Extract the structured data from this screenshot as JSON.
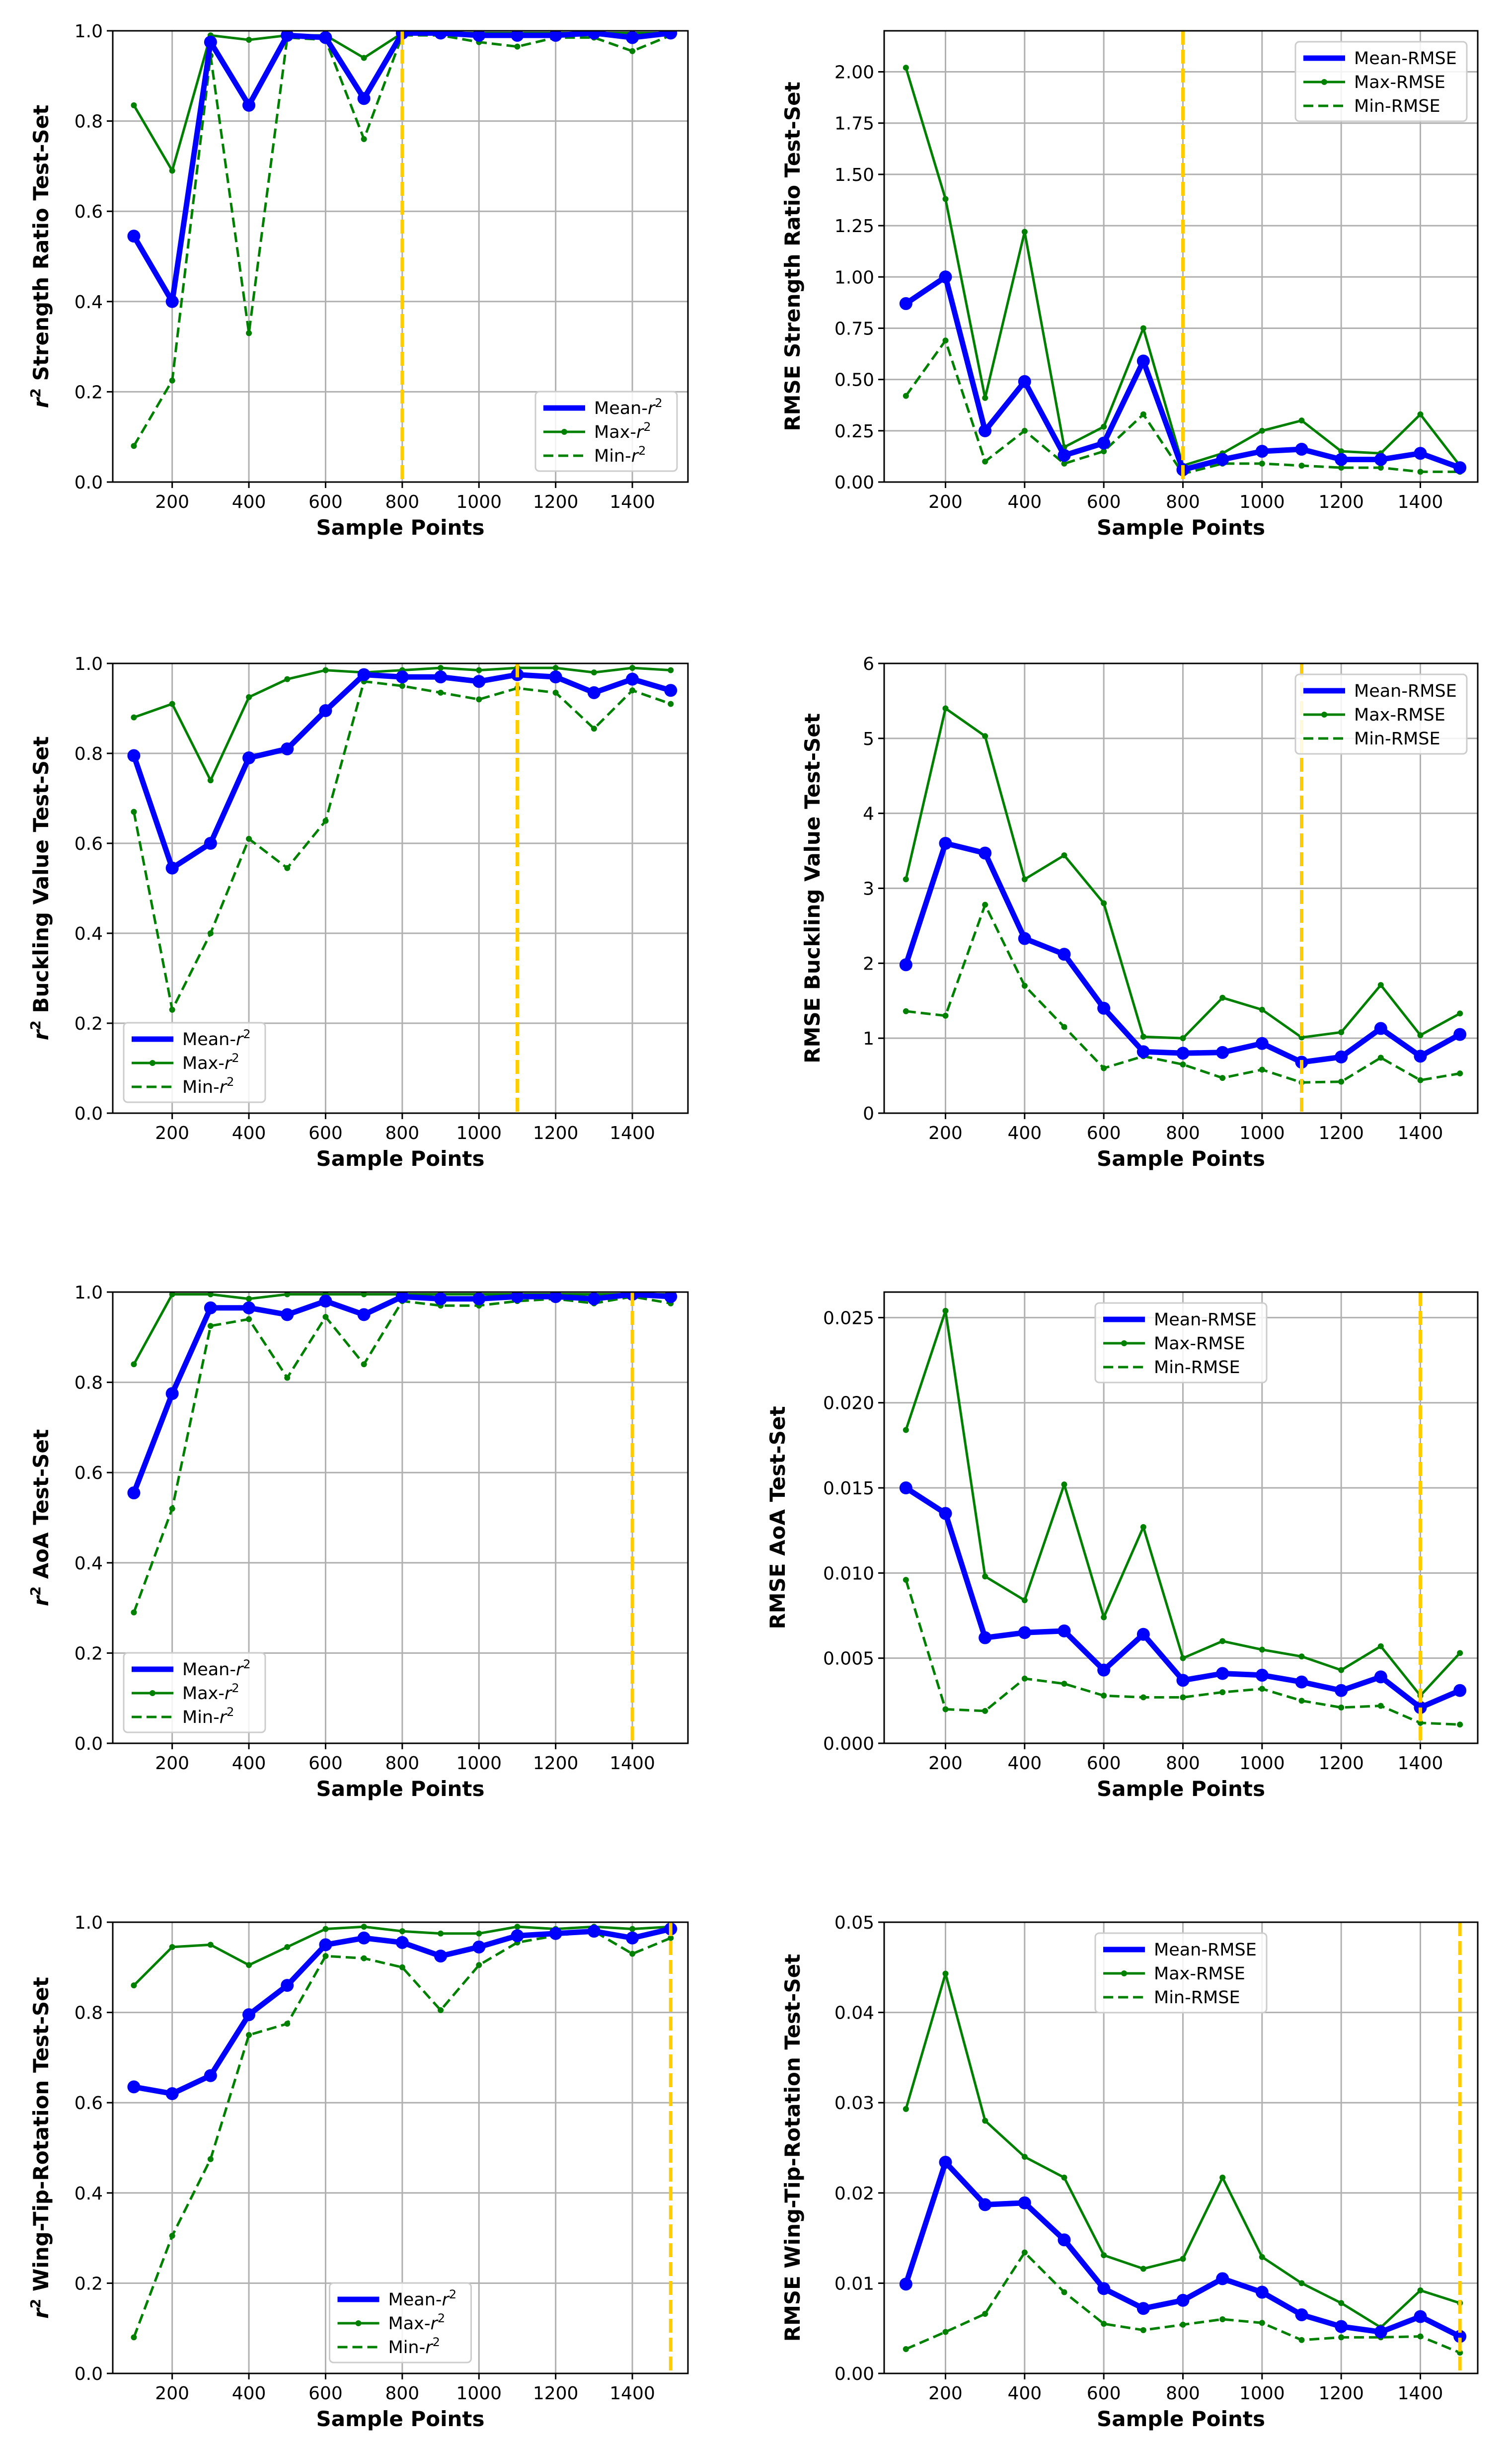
{
  "chart_data": [
    {
      "type": "line",
      "ylabel_prefix": "r",
      "ylabel_sup": "2",
      "ylabel": " Strength Ratio Test-Set",
      "xlabel": "Sample Points",
      "xlim": [
        45,
        1545
      ],
      "ylim": [
        0,
        1.0
      ],
      "xticks": [
        "200",
        "400",
        "600",
        "800",
        "1000",
        "1200",
        "1400"
      ],
      "yticks": [
        "0.0",
        "0.2",
        "0.4",
        "0.6",
        "0.8",
        "1.0"
      ],
      "x": [
        100,
        200,
        300,
        400,
        500,
        600,
        700,
        800,
        900,
        1000,
        1100,
        1200,
        1300,
        1400,
        1500
      ],
      "vline": 800,
      "legend_loc": "lower-right",
      "series": [
        {
          "name": "Mean-",
          "sup": "2",
          "style": "mean",
          "values": [
            0.545,
            0.4,
            0.975,
            0.835,
            0.99,
            0.985,
            0.85,
            0.995,
            0.995,
            0.99,
            0.99,
            0.99,
            0.995,
            0.985,
            0.995
          ]
        },
        {
          "name": "Max-",
          "sup": "2",
          "style": "max",
          "values": [
            0.835,
            0.69,
            0.99,
            0.98,
            0.99,
            0.99,
            0.94,
            0.995,
            0.995,
            0.995,
            0.995,
            0.995,
            0.995,
            0.995,
            0.995
          ]
        },
        {
          "name": "Min-",
          "sup": "2",
          "style": "min",
          "values": [
            0.08,
            0.225,
            0.945,
            0.33,
            0.985,
            0.98,
            0.76,
            0.99,
            0.99,
            0.975,
            0.965,
            0.985,
            0.985,
            0.955,
            0.99
          ]
        }
      ]
    },
    {
      "type": "line",
      "ylabel_prefix": "",
      "ylabel_sup": "",
      "ylabel": "RMSE Strength Ratio Test-Set",
      "xlabel": "Sample Points",
      "xlim": [
        45,
        1545
      ],
      "ylim": [
        0,
        2.2
      ],
      "xticks": [
        "200",
        "400",
        "600",
        "800",
        "1000",
        "1200",
        "1400"
      ],
      "yticks": [
        "0.00",
        "0.25",
        "0.50",
        "0.75",
        "1.00",
        "1.25",
        "1.50",
        "1.75",
        "2.00"
      ],
      "x": [
        100,
        200,
        300,
        400,
        500,
        600,
        700,
        800,
        900,
        1000,
        1100,
        1200,
        1300,
        1400,
        1500
      ],
      "vline": 800,
      "legend_loc": "top-right",
      "series": [
        {
          "name": "Mean-RMSE",
          "sup": "",
          "style": "mean",
          "values": [
            0.87,
            1.0,
            0.25,
            0.49,
            0.13,
            0.19,
            0.59,
            0.06,
            0.11,
            0.15,
            0.16,
            0.11,
            0.11,
            0.14,
            0.07
          ]
        },
        {
          "name": "Max-RMSE",
          "sup": "",
          "style": "max",
          "values": [
            2.02,
            1.38,
            0.41,
            1.22,
            0.17,
            0.27,
            0.75,
            0.08,
            0.14,
            0.25,
            0.3,
            0.15,
            0.14,
            0.33,
            0.08
          ]
        },
        {
          "name": "Min-RMSE",
          "sup": "",
          "style": "min",
          "values": [
            0.42,
            0.69,
            0.1,
            0.25,
            0.09,
            0.15,
            0.33,
            0.04,
            0.09,
            0.09,
            0.08,
            0.07,
            0.07,
            0.05,
            0.05
          ]
        }
      ]
    },
    {
      "type": "line",
      "ylabel_prefix": "r",
      "ylabel_sup": "2",
      "ylabel": " Buckling Value Test-Set",
      "xlabel": "Sample Points",
      "xlim": [
        45,
        1545
      ],
      "ylim": [
        0,
        1.0
      ],
      "xticks": [
        "200",
        "400",
        "600",
        "800",
        "1000",
        "1200",
        "1400"
      ],
      "yticks": [
        "0.0",
        "0.2",
        "0.4",
        "0.6",
        "0.8",
        "1.0"
      ],
      "x": [
        100,
        200,
        300,
        400,
        500,
        600,
        700,
        800,
        900,
        1000,
        1100,
        1200,
        1300,
        1400,
        1500
      ],
      "vline": 1100,
      "legend_loc": "lower-left",
      "series": [
        {
          "name": "Mean-",
          "sup": "2",
          "style": "mean",
          "values": [
            0.795,
            0.545,
            0.6,
            0.79,
            0.81,
            0.895,
            0.975,
            0.97,
            0.97,
            0.96,
            0.975,
            0.97,
            0.935,
            0.965,
            0.94
          ]
        },
        {
          "name": "Max-",
          "sup": "2",
          "style": "max",
          "values": [
            0.88,
            0.91,
            0.74,
            0.925,
            0.965,
            0.985,
            0.98,
            0.985,
            0.99,
            0.985,
            0.99,
            0.99,
            0.98,
            0.99,
            0.985
          ]
        },
        {
          "name": "Min-",
          "sup": "2",
          "style": "min",
          "values": [
            0.67,
            0.23,
            0.4,
            0.61,
            0.545,
            0.65,
            0.96,
            0.95,
            0.935,
            0.92,
            0.945,
            0.935,
            0.855,
            0.94,
            0.91
          ]
        }
      ]
    },
    {
      "type": "line",
      "ylabel_prefix": "",
      "ylabel_sup": "",
      "ylabel": "RMSE Buckling Value Test-Set",
      "xlabel": "Sample Points",
      "xlim": [
        45,
        1545
      ],
      "ylim": [
        0,
        6
      ],
      "xticks": [
        "200",
        "400",
        "600",
        "800",
        "1000",
        "1200",
        "1400"
      ],
      "yticks": [
        "0",
        "1",
        "2",
        "3",
        "4",
        "5",
        "6"
      ],
      "x": [
        100,
        200,
        300,
        400,
        500,
        600,
        700,
        800,
        900,
        1000,
        1100,
        1200,
        1300,
        1400,
        1500
      ],
      "vline": 1100,
      "legend_loc": "top-right",
      "series": [
        {
          "name": "Mean-RMSE",
          "sup": "",
          "style": "mean",
          "values": [
            1.98,
            3.6,
            3.47,
            2.33,
            2.12,
            1.4,
            0.82,
            0.8,
            0.81,
            0.93,
            0.68,
            0.75,
            1.13,
            0.76,
            1.05
          ]
        },
        {
          "name": "Max-RMSE",
          "sup": "",
          "style": "max",
          "values": [
            3.12,
            5.4,
            5.03,
            3.12,
            3.44,
            2.8,
            1.02,
            1.0,
            1.54,
            1.38,
            1.01,
            1.08,
            1.71,
            1.04,
            1.33
          ]
        },
        {
          "name": "Min-RMSE",
          "sup": "",
          "style": "min",
          "values": [
            1.36,
            1.3,
            2.78,
            1.7,
            1.15,
            0.6,
            0.76,
            0.65,
            0.47,
            0.58,
            0.41,
            0.42,
            0.74,
            0.44,
            0.53
          ]
        }
      ]
    },
    {
      "type": "line",
      "ylabel_prefix": "r",
      "ylabel_sup": "2",
      "ylabel": " AoA Test-Set",
      "xlabel": "Sample Points",
      "xlim": [
        45,
        1545
      ],
      "ylim": [
        0,
        1.0
      ],
      "xticks": [
        "200",
        "400",
        "600",
        "800",
        "1000",
        "1200",
        "1400"
      ],
      "yticks": [
        "0.0",
        "0.2",
        "0.4",
        "0.6",
        "0.8",
        "1.0"
      ],
      "x": [
        100,
        200,
        300,
        400,
        500,
        600,
        700,
        800,
        900,
        1000,
        1100,
        1200,
        1300,
        1400,
        1500
      ],
      "vline": 1400,
      "legend_loc": "lower-left",
      "series": [
        {
          "name": "Mean-",
          "sup": "2",
          "style": "mean",
          "values": [
            0.555,
            0.775,
            0.965,
            0.965,
            0.95,
            0.98,
            0.95,
            0.99,
            0.985,
            0.985,
            0.99,
            0.99,
            0.985,
            0.995,
            0.99
          ]
        },
        {
          "name": "Max-",
          "sup": "2",
          "style": "max",
          "values": [
            0.84,
            0.995,
            0.995,
            0.985,
            0.995,
            0.995,
            0.995,
            0.995,
            0.995,
            0.995,
            0.995,
            0.995,
            0.995,
            0.995,
            0.995
          ]
        },
        {
          "name": "Min-",
          "sup": "2",
          "style": "min",
          "values": [
            0.29,
            0.52,
            0.925,
            0.94,
            0.81,
            0.945,
            0.84,
            0.98,
            0.97,
            0.97,
            0.98,
            0.985,
            0.975,
            0.99,
            0.975
          ]
        }
      ]
    },
    {
      "type": "line",
      "ylabel_prefix": "",
      "ylabel_sup": "",
      "ylabel": "RMSE AoA Test-Set",
      "xlabel": "Sample Points",
      "xlim": [
        45,
        1545
      ],
      "ylim": [
        0,
        0.0265
      ],
      "xticks": [
        "200",
        "400",
        "600",
        "800",
        "1000",
        "1200",
        "1400"
      ],
      "yticks": [
        "0.000",
        "0.005",
        "0.010",
        "0.015",
        "0.020",
        "0.025"
      ],
      "x": [
        100,
        200,
        300,
        400,
        500,
        600,
        700,
        800,
        900,
        1000,
        1100,
        1200,
        1300,
        1400,
        1500
      ],
      "vline": 1400,
      "legend_loc": "top-center",
      "series": [
        {
          "name": "Mean-RMSE",
          "sup": "",
          "style": "mean",
          "values": [
            0.015,
            0.0135,
            0.0062,
            0.0065,
            0.0066,
            0.0043,
            0.0064,
            0.0037,
            0.0041,
            0.004,
            0.0036,
            0.0031,
            0.0039,
            0.0021,
            0.0031
          ]
        },
        {
          "name": "Max-RMSE",
          "sup": "",
          "style": "max",
          "values": [
            0.0184,
            0.0254,
            0.0098,
            0.0084,
            0.0152,
            0.0074,
            0.0127,
            0.005,
            0.006,
            0.0055,
            0.0051,
            0.0043,
            0.0057,
            0.0028,
            0.0053
          ]
        },
        {
          "name": "Min-RMSE",
          "sup": "",
          "style": "min",
          "values": [
            0.0096,
            0.002,
            0.0019,
            0.0038,
            0.0035,
            0.0028,
            0.0027,
            0.0027,
            0.003,
            0.0032,
            0.0025,
            0.0021,
            0.0022,
            0.0012,
            0.0011
          ]
        }
      ]
    },
    {
      "type": "line",
      "ylabel_prefix": "r",
      "ylabel_sup": "2",
      "ylabel": " Wing-Tip-Rotation Test-Set",
      "xlabel": "Sample Points",
      "xlim": [
        45,
        1545
      ],
      "ylim": [
        0,
        1.0
      ],
      "xticks": [
        "200",
        "400",
        "600",
        "800",
        "1000",
        "1200",
        "1400"
      ],
      "yticks": [
        "0.0",
        "0.2",
        "0.4",
        "0.6",
        "0.8",
        "1.0"
      ],
      "x": [
        100,
        200,
        300,
        400,
        500,
        600,
        700,
        800,
        900,
        1000,
        1100,
        1200,
        1300,
        1400,
        1500
      ],
      "vline": 1500,
      "legend_loc": "lower-center",
      "series": [
        {
          "name": "Mean-",
          "sup": "2",
          "style": "mean",
          "values": [
            0.635,
            0.62,
            0.66,
            0.795,
            0.86,
            0.95,
            0.965,
            0.955,
            0.925,
            0.945,
            0.97,
            0.975,
            0.98,
            0.965,
            0.985
          ]
        },
        {
          "name": "Max-",
          "sup": "2",
          "style": "max",
          "values": [
            0.86,
            0.945,
            0.95,
            0.905,
            0.945,
            0.985,
            0.99,
            0.98,
            0.975,
            0.975,
            0.99,
            0.985,
            0.99,
            0.985,
            0.99
          ]
        },
        {
          "name": "Min-",
          "sup": "2",
          "style": "min",
          "values": [
            0.08,
            0.305,
            0.475,
            0.75,
            0.775,
            0.925,
            0.92,
            0.9,
            0.805,
            0.905,
            0.955,
            0.97,
            0.98,
            0.93,
            0.965
          ]
        }
      ]
    },
    {
      "type": "line",
      "ylabel_prefix": "",
      "ylabel_sup": "",
      "ylabel": "RMSE Wing-Tip-Rotation Test-Set",
      "xlabel": "Sample Points",
      "xlim": [
        45,
        1545
      ],
      "ylim": [
        0,
        0.05
      ],
      "xticks": [
        "200",
        "400",
        "600",
        "800",
        "1000",
        "1200",
        "1400"
      ],
      "yticks": [
        "0.00",
        "0.01",
        "0.02",
        "0.03",
        "0.04",
        "0.05"
      ],
      "x": [
        100,
        200,
        300,
        400,
        500,
        600,
        700,
        800,
        900,
        1000,
        1100,
        1200,
        1300,
        1400,
        1500
      ],
      "vline": 1500,
      "legend_loc": "top-center",
      "series": [
        {
          "name": "Mean-RMSE",
          "sup": "",
          "style": "mean",
          "values": [
            0.0099,
            0.0234,
            0.0187,
            0.0189,
            0.0148,
            0.0094,
            0.0072,
            0.0081,
            0.0105,
            0.009,
            0.0065,
            0.0052,
            0.0046,
            0.0063,
            0.0041
          ]
        },
        {
          "name": "Max-RMSE",
          "sup": "",
          "style": "max",
          "values": [
            0.0293,
            0.0443,
            0.028,
            0.024,
            0.0217,
            0.0131,
            0.0116,
            0.0127,
            0.0217,
            0.0129,
            0.01,
            0.0078,
            0.0051,
            0.0092,
            0.0078
          ]
        },
        {
          "name": "Min-RMSE",
          "sup": "",
          "style": "min",
          "values": [
            0.0027,
            0.0046,
            0.0066,
            0.0134,
            0.009,
            0.0055,
            0.0048,
            0.0054,
            0.006,
            0.0056,
            0.0037,
            0.004,
            0.004,
            0.0041,
            0.0023
          ]
        }
      ]
    }
  ],
  "colors": {
    "mean": "#0000ff",
    "max": "#008000",
    "min": "#008000",
    "vline": "#ffcc00",
    "grid": "#b0b0b0"
  }
}
